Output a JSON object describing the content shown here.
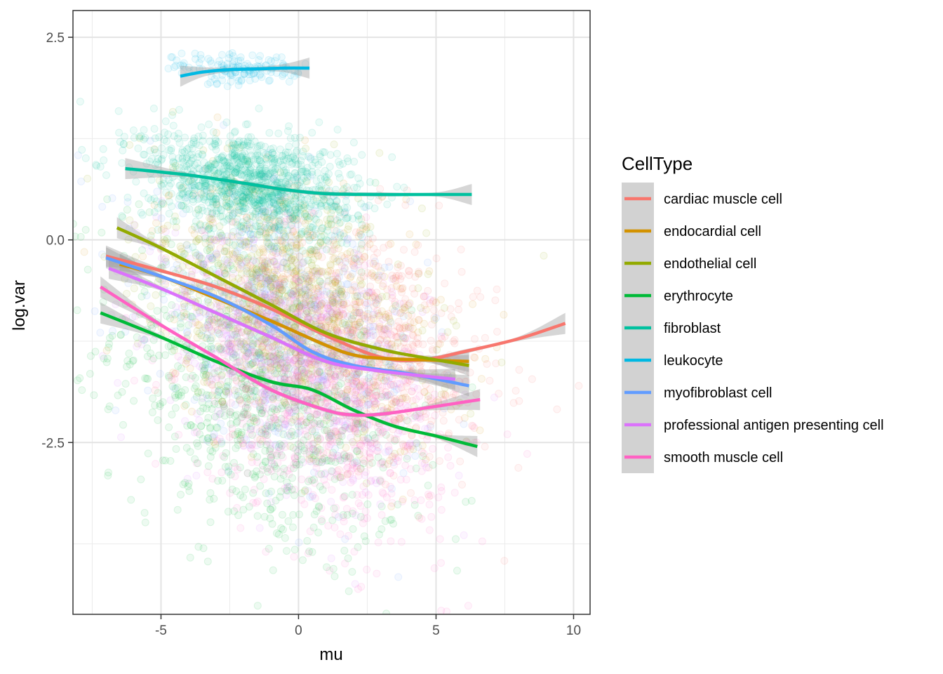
{
  "chart_data": {
    "type": "scatter",
    "title": "",
    "xlabel": "mu",
    "ylabel": "log.var",
    "xlim": [
      -8.2,
      10.6
    ],
    "ylim": [
      -4.62,
      2.83
    ],
    "x_ticks": [
      -5,
      0,
      5,
      10
    ],
    "y_ticks": [
      -2.5,
      0.0,
      2.5
    ],
    "x_tick_labels": [
      "-5",
      "0",
      "5",
      "10"
    ],
    "y_tick_labels": [
      "-2.5",
      "0.0",
      "2.5"
    ],
    "grid": true,
    "legend_position": "right",
    "legend_title": "CellType",
    "overlay": "loess smooth lines with grey confidence bands over semi-transparent points",
    "series": [
      {
        "name": "cardiac muscle cell",
        "color": "#F8766D",
        "cloud": {
          "cx": 2.5,
          "cy": -1.2,
          "sx": 2.4,
          "sy": 0.75,
          "n": 650
        },
        "smooth": [
          [
            -7,
            -0.2
          ],
          [
            -5,
            -0.38
          ],
          [
            -3,
            -0.58
          ],
          [
            -1,
            -0.85
          ],
          [
            1,
            -1.18
          ],
          [
            3,
            -1.45
          ],
          [
            4.5,
            -1.48
          ],
          [
            6,
            -1.38
          ],
          [
            8,
            -1.22
          ],
          [
            9.7,
            -1.03
          ]
        ]
      },
      {
        "name": "endocardial cell",
        "color": "#D39200",
        "cloud": {
          "cx": 0,
          "cy": -0.9,
          "sx": 2.6,
          "sy": 0.75,
          "n": 600
        },
        "smooth": [
          [
            -6.5,
            -0.3
          ],
          [
            -5,
            -0.45
          ],
          [
            -3,
            -0.72
          ],
          [
            -1,
            -1.0
          ],
          [
            1,
            -1.3
          ],
          [
            2,
            -1.42
          ],
          [
            3,
            -1.46
          ],
          [
            4.5,
            -1.48
          ],
          [
            6.2,
            -1.5
          ]
        ]
      },
      {
        "name": "endothelial cell",
        "color": "#93AA00",
        "cloud": {
          "cx": -0.5,
          "cy": -0.7,
          "sx": 2.6,
          "sy": 0.75,
          "n": 600
        },
        "smooth": [
          [
            -6.6,
            0.15
          ],
          [
            -5,
            -0.1
          ],
          [
            -3,
            -0.45
          ],
          [
            -1,
            -0.8
          ],
          [
            1,
            -1.15
          ],
          [
            3,
            -1.35
          ],
          [
            4.5,
            -1.45
          ],
          [
            6.2,
            -1.55
          ]
        ]
      },
      {
        "name": "erythrocyte",
        "color": "#00BA38",
        "cloud": {
          "cx": -1.5,
          "cy": -1.9,
          "sx": 2.6,
          "sy": 0.95,
          "n": 900
        },
        "smooth": [
          [
            -7.2,
            -0.9
          ],
          [
            -5,
            -1.2
          ],
          [
            -3,
            -1.5
          ],
          [
            -1,
            -1.75
          ],
          [
            0.5,
            -1.85
          ],
          [
            2,
            -2.1
          ],
          [
            3.5,
            -2.3
          ],
          [
            5,
            -2.42
          ],
          [
            6.5,
            -2.55
          ]
        ]
      },
      {
        "name": "fibroblast",
        "color": "#00C19F",
        "cloud": {
          "cx": -1.8,
          "cy": 0.7,
          "sx": 1.9,
          "sy": 0.32,
          "n": 1100
        },
        "smooth": [
          [
            -6.3,
            0.88
          ],
          [
            -4,
            0.8
          ],
          [
            -2,
            0.7
          ],
          [
            -0.5,
            0.62
          ],
          [
            1,
            0.57
          ],
          [
            3,
            0.56
          ],
          [
            5,
            0.56
          ],
          [
            6.3,
            0.56
          ]
        ]
      },
      {
        "name": "leukocyte",
        "color": "#00B9E3",
        "cloud": {
          "cx": -2.2,
          "cy": 2.1,
          "sx": 1.2,
          "sy": 0.1,
          "n": 140
        },
        "smooth": [
          [
            -4.3,
            2.02
          ],
          [
            -3.5,
            2.07
          ],
          [
            -2.5,
            2.1
          ],
          [
            -1.5,
            2.11
          ],
          [
            -0.5,
            2.12
          ],
          [
            0.4,
            2.12
          ]
        ]
      },
      {
        "name": "myofibroblast cell",
        "color": "#619CFF",
        "cloud": {
          "cx": -0.5,
          "cy": -1.1,
          "sx": 2.5,
          "sy": 0.75,
          "n": 550
        },
        "smooth": [
          [
            -7,
            -0.22
          ],
          [
            -5,
            -0.45
          ],
          [
            -3,
            -0.7
          ],
          [
            -1,
            -1.05
          ],
          [
            0.5,
            -1.38
          ],
          [
            2,
            -1.55
          ],
          [
            4,
            -1.65
          ],
          [
            6.2,
            -1.8
          ]
        ]
      },
      {
        "name": "professional antigen presenting cell",
        "color": "#DB72FB",
        "cloud": {
          "cx": -0.5,
          "cy": -1.3,
          "sx": 2.5,
          "sy": 0.75,
          "n": 550
        },
        "smooth": [
          [
            -6.9,
            -0.35
          ],
          [
            -5,
            -0.6
          ],
          [
            -3,
            -0.9
          ],
          [
            -1,
            -1.2
          ],
          [
            1,
            -1.5
          ],
          [
            3,
            -1.62
          ],
          [
            5.7,
            -1.72
          ]
        ]
      },
      {
        "name": "smooth muscle cell",
        "color": "#FF61C3",
        "cloud": {
          "cx": 0.8,
          "cy": -2.0,
          "sx": 2.3,
          "sy": 0.75,
          "n": 750
        },
        "smooth": [
          [
            -7.2,
            -0.58
          ],
          [
            -5,
            -1.05
          ],
          [
            -3,
            -1.45
          ],
          [
            -1,
            -1.85
          ],
          [
            1,
            -2.1
          ],
          [
            2,
            -2.16
          ],
          [
            3,
            -2.15
          ],
          [
            4.5,
            -2.08
          ],
          [
            6.6,
            -1.97
          ]
        ]
      }
    ]
  }
}
